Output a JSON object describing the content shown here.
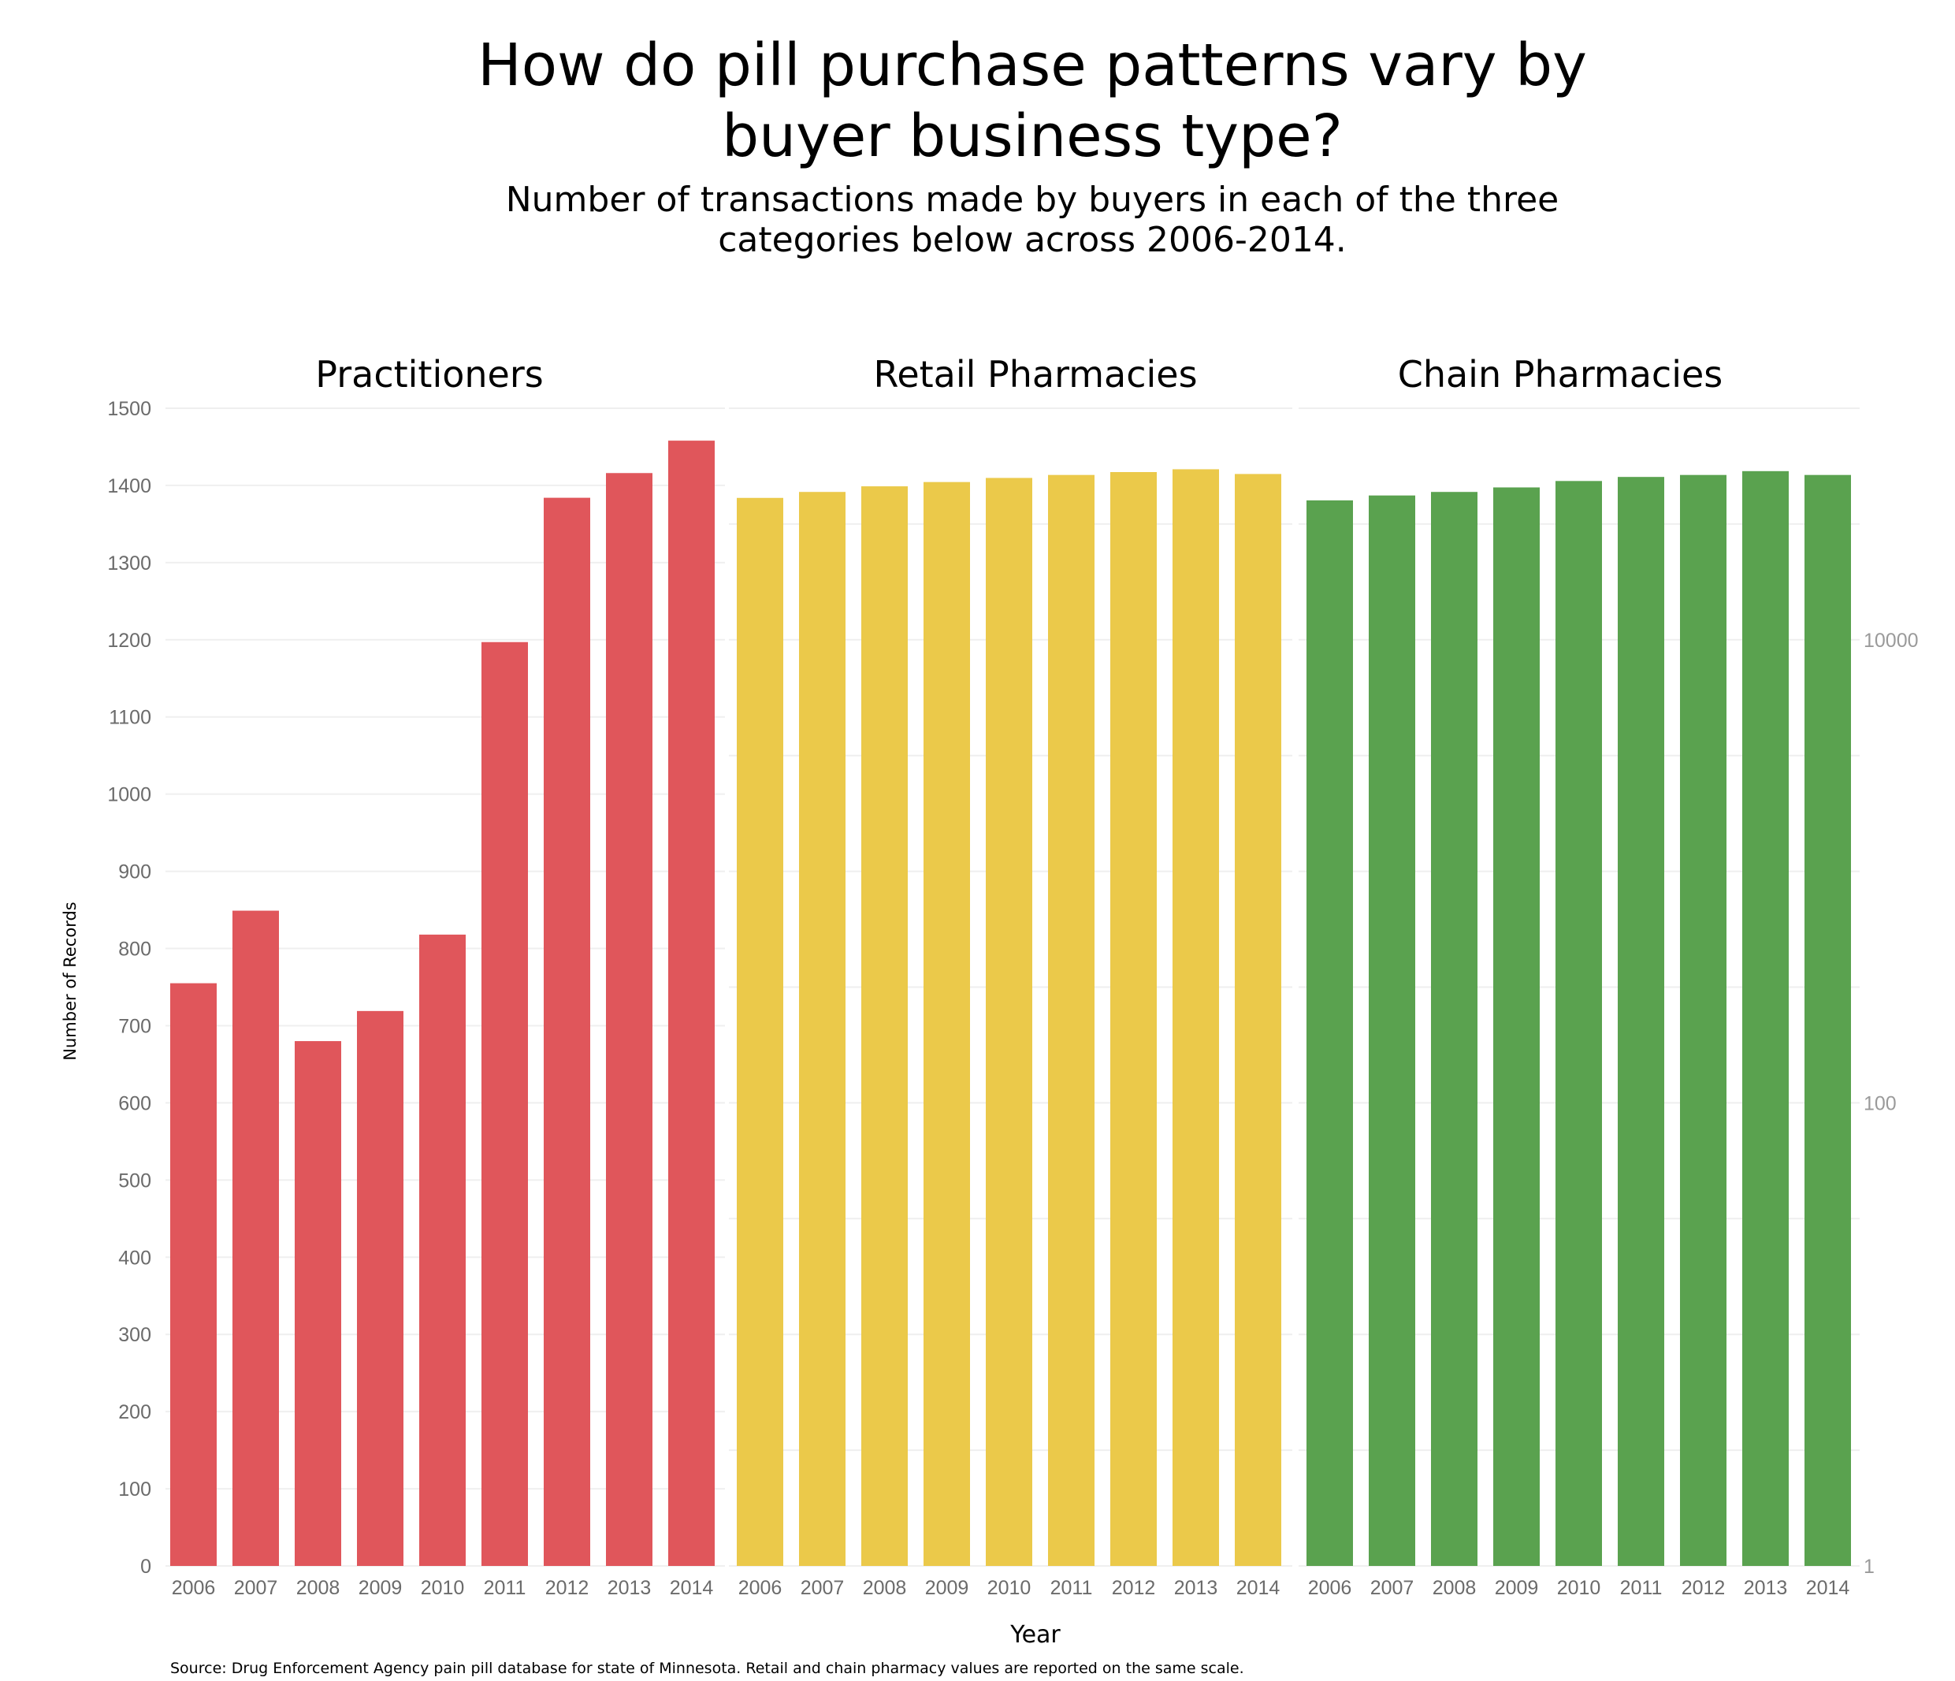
{
  "title_line1": "How do pill purchase patterns vary by",
  "title_line2": "buyer business type?",
  "subtitle_line1": "Number of transactions made by buyers in each of the three",
  "subtitle_line2": "categories below across 2006-2014.",
  "source": "Source: Drug Enforcement Agency pain pill database for state of Minnesota. Retail and chain pharmacy values are reported on the same scale.",
  "colors": {
    "practitioners": "#e0565b",
    "retail": "#ebc94a",
    "chain": "#5aa24f",
    "grid": "#efefef"
  },
  "chart_data": [
    {
      "type": "bar",
      "panel": "Practitioners",
      "categories": [
        "2006",
        "2007",
        "2008",
        "2009",
        "2010",
        "2011",
        "2012",
        "2013",
        "2014"
      ],
      "values": [
        755,
        849,
        680,
        719,
        818,
        1197,
        1384,
        1416,
        1458
      ],
      "xlabel": "Year",
      "ylabel": "Number of Records",
      "ylim": [
        0,
        1500
      ],
      "yticks": [
        0,
        100,
        200,
        300,
        400,
        500,
        600,
        700,
        800,
        900,
        1000,
        1100,
        1200,
        1300,
        1400,
        1500
      ],
      "grid": true
    },
    {
      "type": "bar",
      "panel": "Retail Pharmacies",
      "categories": [
        "2006",
        "2007",
        "2008",
        "2009",
        "2010",
        "2011",
        "2012",
        "2013",
        "2014"
      ],
      "values": [
        41000,
        43500,
        46000,
        48000,
        50000,
        51500,
        53000,
        54500,
        52000
      ],
      "yscale": "log",
      "ylim": [
        1,
        100000
      ],
      "grid": true
    },
    {
      "type": "bar",
      "panel": "Chain Pharmacies",
      "categories": [
        "2006",
        "2007",
        "2008",
        "2009",
        "2010",
        "2011",
        "2012",
        "2013",
        "2014"
      ],
      "values": [
        40000,
        42000,
        43500,
        45500,
        48500,
        50500,
        51500,
        53500,
        51500
      ],
      "yscale": "log",
      "ylim": [
        1,
        100000
      ],
      "yticks": [
        1,
        100,
        10000
      ],
      "ytick_side": "right",
      "grid": true
    }
  ]
}
